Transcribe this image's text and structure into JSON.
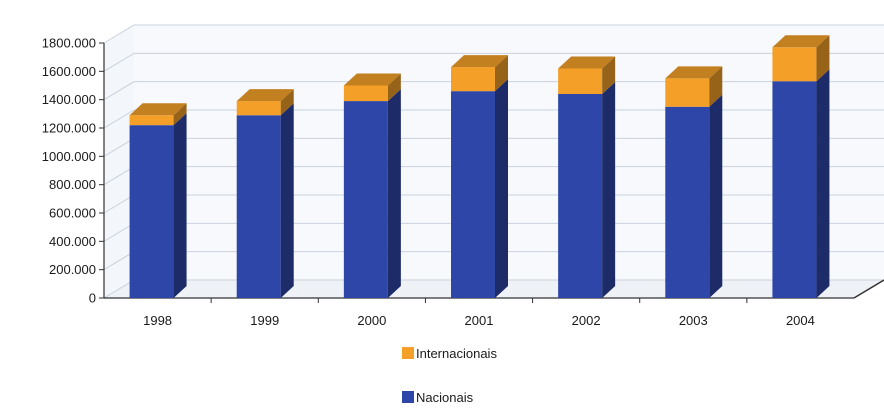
{
  "chart_data": {
    "type": "bar",
    "stacked": true,
    "three_d": true,
    "categories": [
      "1998",
      "1999",
      "2000",
      "2001",
      "2002",
      "2003",
      "2004"
    ],
    "series": [
      {
        "name": "Nacionais",
        "color": "#2e46a8",
        "values": [
          1220000,
          1290000,
          1390000,
          1460000,
          1440000,
          1350000,
          1530000
        ]
      },
      {
        "name": "Internacionais",
        "color": "#f4a028",
        "values": [
          70000,
          100000,
          110000,
          170000,
          180000,
          200000,
          240000
        ]
      }
    ],
    "ylim": [
      0,
      1800000
    ],
    "y_ticks": [
      0,
      200000,
      400000,
      600000,
      800000,
      1000000,
      1200000,
      1400000,
      1600000,
      1800000
    ],
    "y_tick_labels": [
      "0",
      "200.000",
      "400.000",
      "600.000",
      "800.000",
      "1000.000",
      "1200.000",
      "1400.000",
      "1600.000",
      "1800.000"
    ],
    "grid": true,
    "legend_order": [
      "Internacionais",
      "Nacionais"
    ],
    "legend_position": "bottom"
  }
}
